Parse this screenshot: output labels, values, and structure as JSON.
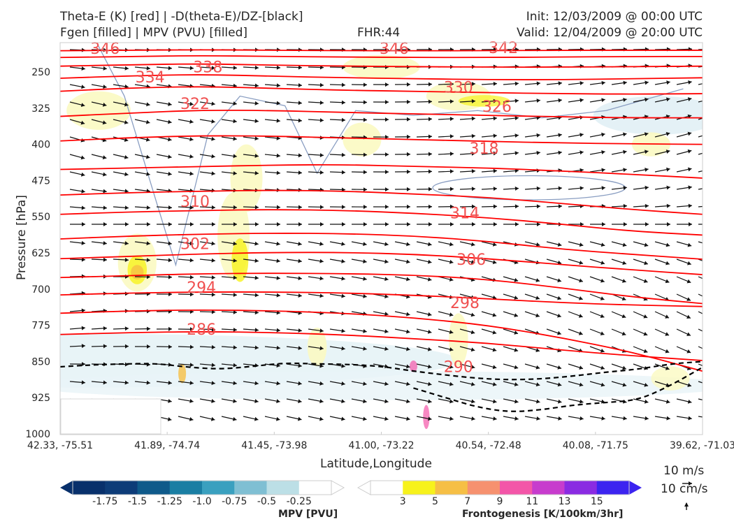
{
  "header": {
    "title_left_line1": "Theta-E (K) [red] | -D(theta-E)/DZ-[black]",
    "title_left_line2": "Fgen [filled] | MPV (PVU) [filled]",
    "fhr": "FHR:44",
    "init": "Init: 12/03/2009 @ 00:00 UTC",
    "valid": "Valid: 12/04/2009 @ 20:00 UTC"
  },
  "colors": {
    "theta_e": "#ff0000",
    "ddz": "#000000",
    "mpv_neg": [
      "#08306b",
      "#0d3c78",
      "#0f5a8a",
      "#1a7ea3",
      "#3aa0bf",
      "#7fbfd3",
      "#bcdfe6",
      "#ffffff"
    ],
    "fgen": [
      "#ffffff",
      "#f7f21c",
      "#f6bf45",
      "#f6916f",
      "#f356a8",
      "#c73ccd",
      "#8a2be2",
      "#3c24f0"
    ],
    "mpv_outline": "#8a9ec2"
  },
  "chart_data": {
    "type": "cross-section",
    "xlabel": "Latitude,Longitude",
    "ylabel": "Pressure [hPa]",
    "ylim": [
      1000,
      200
    ],
    "x_ticks": [
      "42.33, -75.51",
      "41.89, -74.74",
      "41.45, -73.98",
      "41.00, -73.22",
      "40.54, -72.48",
      "40.08, -71.75",
      "39.62, -71.03"
    ],
    "y_ticks": [
      250,
      325,
      400,
      475,
      550,
      625,
      700,
      775,
      850,
      925,
      1000
    ],
    "theta_e_contours": [
      {
        "level": 286,
        "pressure": [
          794,
          790,
          788,
          790,
          795,
          803,
          812,
          826,
          838,
          848
        ]
      },
      {
        "level": 290,
        "pressure": [
          750,
          745,
          743,
          745,
          750,
          760,
          775,
          800,
          830,
          870
        ]
      },
      {
        "level": 294,
        "pressure": [
          712,
          708,
          706,
          706,
          708,
          713,
          720,
          728,
          733,
          736
        ]
      },
      {
        "level": 298,
        "pressure": [
          676,
          672,
          668,
          667,
          668,
          671,
          680,
          697,
          716,
          730
        ]
      },
      {
        "level": 302,
        "pressure": [
          637,
          632,
          627,
          624,
          624,
          628,
          637,
          649,
          660,
          670
        ]
      },
      {
        "level": 306,
        "pressure": [
          596,
          590,
          586,
          584,
          585,
          590,
          601,
          617,
          628,
          638
        ]
      },
      {
        "level": 310,
        "pressure": [
          545,
          540,
          537,
          535,
          537,
          543,
          552,
          565,
          580,
          588
        ]
      },
      {
        "level": 314,
        "pressure": [
          505,
          500,
          497,
          495,
          497,
          503,
          510,
          522,
          535,
          545
        ]
      },
      {
        "level": 318,
        "pressure": [
          452,
          449,
          446,
          443,
          442,
          446,
          449,
          455,
          462,
          470
        ]
      },
      {
        "level": 322,
        "pressure": [
          393,
          386,
          382,
          383,
          387,
          390,
          394,
          397,
          399,
          400
        ]
      },
      {
        "level": 326,
        "pressure": [
          342,
          335,
          329,
          330,
          334,
          337,
          340,
          343,
          345,
          345
        ]
      },
      {
        "level": 330,
        "pressure": [
          290,
          283,
          280,
          284,
          288,
          290,
          293,
          295,
          296,
          295
        ]
      },
      {
        "level": 334,
        "pressure": [
          263,
          258,
          255,
          259,
          262,
          264,
          266,
          266,
          264,
          262
        ]
      },
      {
        "level": 338,
        "pressure": [
          238,
          235,
          233,
          236,
          238,
          239,
          240,
          240,
          239,
          238
        ]
      },
      {
        "level": 342,
        "pressure": [
          220,
          218,
          216,
          218,
          219,
          220,
          220,
          219,
          218,
          218
        ]
      },
      {
        "level": 346,
        "pressure": [
          206,
          205,
          204,
          205,
          206,
          206,
          206,
          205,
          205,
          205
        ]
      }
    ],
    "theta_e_labels": [
      {
        "level": "346",
        "x_frac": 0.07,
        "pressure": 204
      },
      {
        "level": "334",
        "x_frac": 0.14,
        "pressure": 263
      },
      {
        "level": "338",
        "x_frac": 0.23,
        "pressure": 242
      },
      {
        "level": "322",
        "x_frac": 0.21,
        "pressure": 318
      },
      {
        "level": "346",
        "x_frac": 0.52,
        "pressure": 204
      },
      {
        "level": "342",
        "x_frac": 0.69,
        "pressure": 202
      },
      {
        "level": "330",
        "x_frac": 0.62,
        "pressure": 284
      },
      {
        "level": "326",
        "x_frac": 0.68,
        "pressure": 324
      },
      {
        "level": "318",
        "x_frac": 0.66,
        "pressure": 411
      },
      {
        "level": "310",
        "x_frac": 0.21,
        "pressure": 521
      },
      {
        "level": "314",
        "x_frac": 0.63,
        "pressure": 545
      },
      {
        "level": "302",
        "x_frac": 0.21,
        "pressure": 608
      },
      {
        "level": "306",
        "x_frac": 0.64,
        "pressure": 641
      },
      {
        "level": "294",
        "x_frac": 0.22,
        "pressure": 699
      },
      {
        "level": "298",
        "x_frac": 0.63,
        "pressure": 731
      },
      {
        "level": "286",
        "x_frac": 0.22,
        "pressure": 786
      },
      {
        "level": "290",
        "x_frac": 0.62,
        "pressure": 863
      }
    ],
    "ddz_contour_1": [
      861,
      857,
      855,
      854,
      862,
      866,
      860,
      853,
      855,
      856,
      860,
      870,
      878,
      885,
      888,
      886,
      880,
      872,
      866,
      855,
      850
    ],
    "ddz_contour_2": [
      null,
      null,
      null,
      null,
      null,
      null,
      null,
      null,
      null,
      null,
      null,
      905,
      925,
      945,
      955,
      950,
      940,
      935,
      930,
      900,
      862
    ],
    "wind_vectors_present": true,
    "mpv_colorbar": {
      "label": "MPV [PVU]",
      "ticks": [
        "-1.75",
        "-1.5",
        "-1.25",
        "-1.0",
        "-0.75",
        "-0.5",
        "-0.25"
      ]
    },
    "fgen_colorbar": {
      "label": "Frontogenesis [K/100km/3hr]",
      "ticks": [
        "3",
        "5",
        "7",
        "9",
        "11",
        "13",
        "15"
      ]
    },
    "reference_vectors": [
      "10 m/s",
      "10 cm/s"
    ]
  }
}
